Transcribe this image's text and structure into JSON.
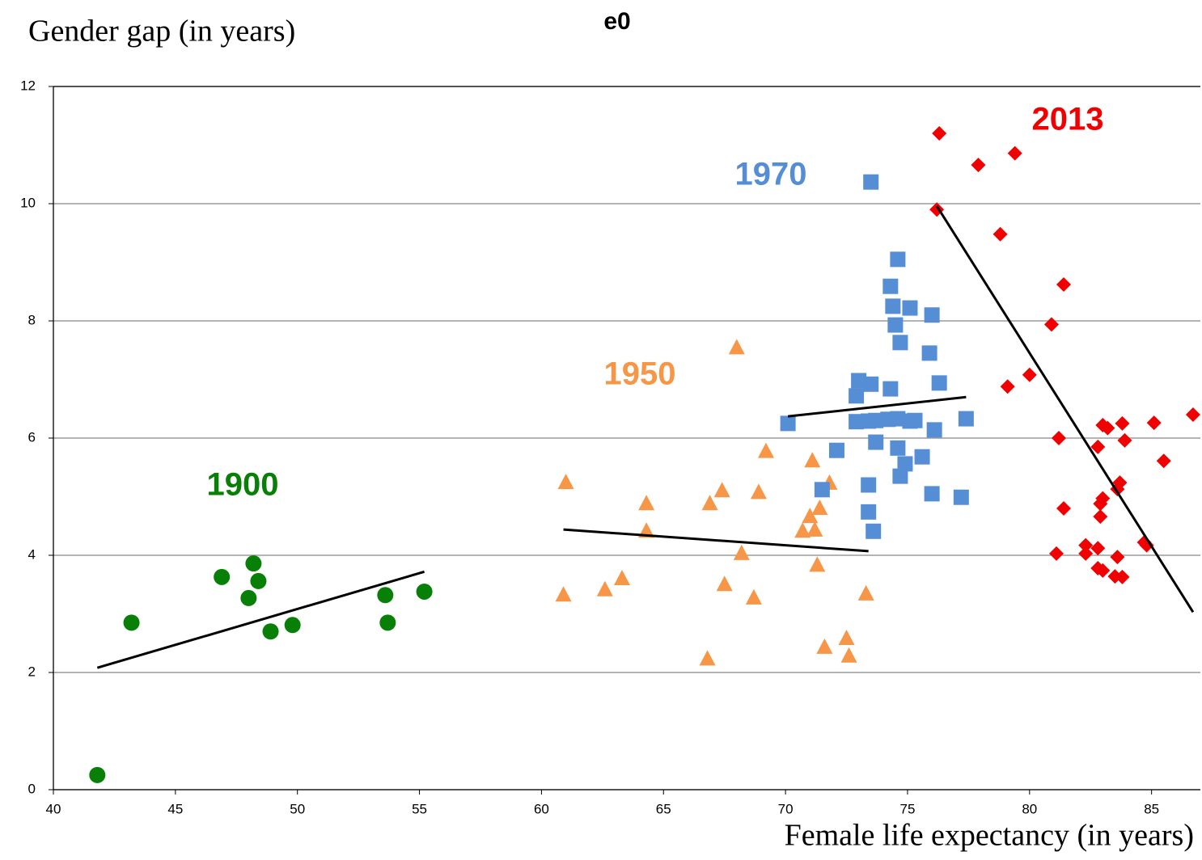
{
  "chart_data": {
    "type": "scatter",
    "title": "e0",
    "y_label": "Gender gap (in years)",
    "x_label": "Female life expectancy (in years)",
    "xlim": [
      40,
      87
    ],
    "ylim": [
      0,
      12
    ],
    "xticks": [
      40,
      45,
      50,
      55,
      60,
      65,
      70,
      75,
      80,
      85
    ],
    "yticks": [
      0,
      2,
      4,
      6,
      8,
      10,
      12
    ],
    "grid": true,
    "series": [
      {
        "name": "1900",
        "color": "#088008",
        "marker": "circle",
        "x": [
          41.8,
          43.2,
          46.9,
          48.2,
          48.4,
          48.0,
          48.9,
          49.8,
          53.6,
          53.7,
          55.2
        ],
        "y": [
          0.25,
          2.85,
          3.63,
          3.86,
          3.56,
          3.27,
          2.7,
          2.81,
          3.32,
          2.85,
          3.38
        ],
        "trend": {
          "x": [
            41.8,
            55.2
          ],
          "y": [
            2.08,
            3.72
          ]
        }
      },
      {
        "name": "1950",
        "color": "#F79646",
        "marker": "triangle",
        "x": [
          61.0,
          60.9,
          62.6,
          63.3,
          64.3,
          64.3,
          66.8,
          66.9,
          67.4,
          68.0,
          67.5,
          68.2,
          68.7,
          68.9,
          69.2,
          70.7,
          71.1,
          71.0,
          71.2,
          71.4,
          71.8,
          71.3,
          71.6,
          72.5,
          72.6,
          73.3
        ],
        "y": [
          5.24,
          3.32,
          3.41,
          3.6,
          4.88,
          4.41,
          2.23,
          4.88,
          5.1,
          7.54,
          3.5,
          4.03,
          3.27,
          5.07,
          5.77,
          4.41,
          5.61,
          4.66,
          4.43,
          4.8,
          5.23,
          3.83,
          2.43,
          2.58,
          2.28,
          3.34
        ],
        "trend": {
          "x": [
            60.9,
            73.4
          ],
          "y": [
            4.44,
            4.07
          ]
        }
      },
      {
        "name": "1970",
        "color": "#558ED5",
        "marker": "square",
        "x": [
          73.5,
          74.6,
          74.3,
          74.4,
          75.1,
          76.0,
          74.5,
          74.7,
          75.9,
          73.0,
          73.5,
          74.3,
          76.3,
          72.9,
          70.1,
          72.9,
          73.4,
          73.7,
          74.2,
          74.6,
          75.1,
          75.3,
          76.1,
          77.4,
          72.1,
          73.7,
          74.6,
          74.9,
          75.6,
          74.7,
          73.4,
          71.5,
          76.0,
          77.2,
          73.4,
          73.6
        ],
        "y": [
          10.37,
          9.05,
          8.59,
          8.25,
          8.22,
          8.1,
          7.93,
          7.63,
          7.45,
          6.98,
          6.92,
          6.84,
          6.94,
          6.72,
          6.25,
          6.28,
          6.29,
          6.3,
          6.32,
          6.33,
          6.29,
          6.3,
          6.14,
          6.33,
          5.79,
          5.93,
          5.83,
          5.56,
          5.68,
          5.35,
          5.2,
          5.12,
          5.05,
          4.99,
          4.74,
          4.41
        ],
        "trend": {
          "x": [
            70.1,
            77.4
          ],
          "y": [
            6.37,
            6.7
          ]
        }
      },
      {
        "name": "2013",
        "color": "#F00000",
        "marker": "diamond",
        "x": [
          76.3,
          79.4,
          77.9,
          76.2,
          78.8,
          81.4,
          80.9,
          80.0,
          79.1,
          86.7,
          85.1,
          83.8,
          83.0,
          83.2,
          81.2,
          83.9,
          82.8,
          85.5,
          83.7,
          83.6,
          83.0,
          82.9,
          81.4,
          82.9,
          84.7,
          84.8,
          82.3,
          82.8,
          82.3,
          81.1,
          83.6,
          82.8,
          83.0,
          83.5,
          83.8
        ],
        "y": [
          11.2,
          10.86,
          10.66,
          9.9,
          9.48,
          8.62,
          7.94,
          7.08,
          6.88,
          6.4,
          6.26,
          6.25,
          6.22,
          6.17,
          6.0,
          5.96,
          5.85,
          5.61,
          5.24,
          5.13,
          4.97,
          4.88,
          4.8,
          4.66,
          4.22,
          4.17,
          4.17,
          4.12,
          4.03,
          4.03,
          3.97,
          3.78,
          3.74,
          3.64,
          3.63
        ],
        "trend": {
          "x": [
            76.2,
            86.7
          ],
          "y": [
            9.96,
            3.03
          ]
        }
      }
    ]
  }
}
